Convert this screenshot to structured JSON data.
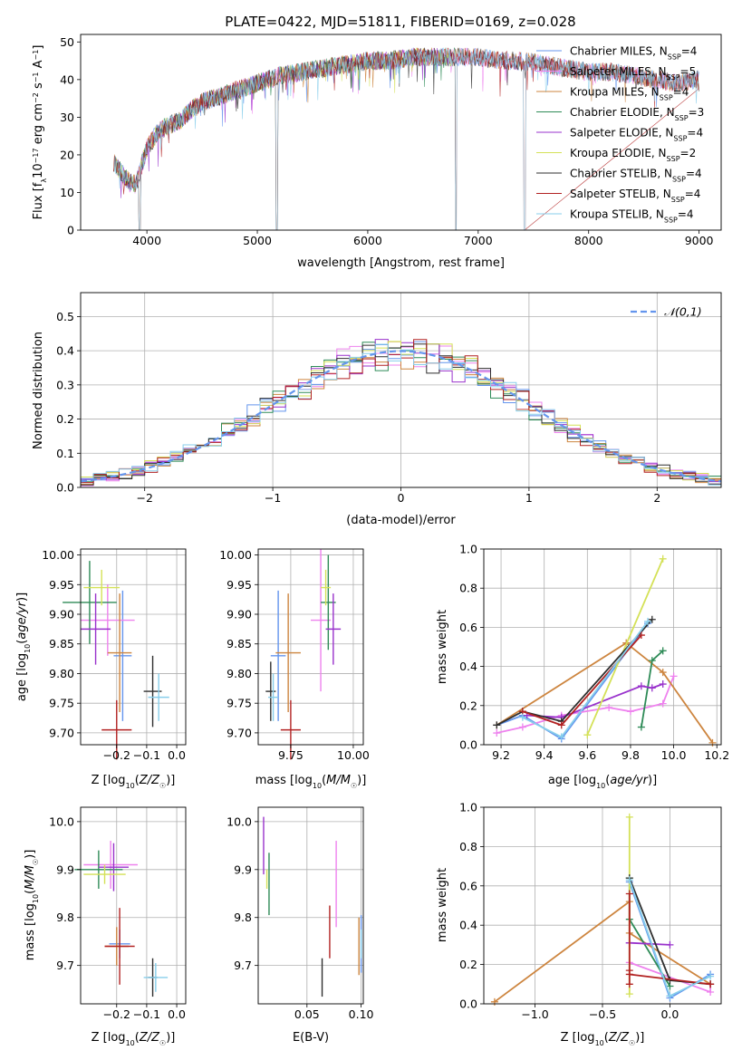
{
  "figure": {
    "title": "PLATE=0422, MJD=51811, FIBERID=0169, z=0.028"
  },
  "model_colors": {
    "Chabrier MILES": "#6495ed",
    "Salpeter MILES": "#ee82ee",
    "Kroupa MILES": "#cd853f",
    "Chabrier ELODIE": "#2e8b57",
    "Salpeter ELODIE": "#9932cc",
    "Kroupa ELODIE": "#d4e157",
    "Chabrier STELIB": "#2f2f2f",
    "Salpeter STELIB": "#b22222",
    "Kroupa STELIB": "#87ceeb"
  },
  "chart_data": [
    {
      "id": "spectrum",
      "type": "line",
      "xlabel": "wavelength [Angstrom, rest frame]",
      "ylabel": "Flux [fλ10⁻¹⁷ erg cm⁻² s⁻¹ A⁻¹]",
      "xlim": [
        3400,
        9200
      ],
      "ylim": [
        0,
        52
      ],
      "xticks": [
        4000,
        5000,
        6000,
        7000,
        8000,
        9000
      ],
      "yticks": [
        0,
        10,
        20,
        30,
        40,
        50
      ],
      "grid": false,
      "legend_position": "top-right",
      "legend": [
        "Chabrier MILES, N_SSP=4",
        "Salpeter MILES, N_SSP=5",
        "Kroupa MILES, N_SSP=4",
        "Chabrier ELODIE, N_SSP=3",
        "Salpeter ELODIE, N_SSP=4",
        "Kroupa ELODIE, N_SSP=2",
        "Chabrier STELIB, N_SSP=4",
        "Salpeter STELIB, N_SSP=4",
        "Kroupa STELIB, N_SSP=4"
      ],
      "continuum": {
        "x": [
          3700,
          3800,
          3900,
          4000,
          4100,
          4200,
          4300,
          4400,
          4500,
          4600,
          4800,
          5000,
          5200,
          5400,
          5600,
          5800,
          6000,
          6200,
          6400,
          6600,
          6800,
          7000,
          7200,
          7400,
          7600,
          7800,
          8000,
          8200,
          8400,
          8600,
          8800,
          9000
        ],
        "y": [
          18,
          14,
          12,
          22,
          26,
          28,
          29,
          32,
          34,
          35,
          37,
          39,
          41,
          42,
          43,
          44,
          45,
          45,
          46,
          46,
          46,
          46,
          45,
          45,
          44,
          43,
          42,
          42,
          41,
          40,
          39,
          40
        ]
      },
      "dips": [
        {
          "x": 3935,
          "y": 0
        },
        {
          "x": 5175,
          "y": 0
        },
        {
          "x": 6800,
          "y": 0
        },
        {
          "x": 7420,
          "y": 0
        }
      ]
    },
    {
      "id": "residual_hist",
      "type": "step",
      "xlabel": "(data-model)/error",
      "ylabel": "Normed distribution",
      "xlim": [
        -2.5,
        2.5
      ],
      "ylim": [
        0,
        0.57
      ],
      "xticks": [
        -2,
        -1,
        0,
        1,
        2
      ],
      "yticks": [
        0,
        0.1,
        0.2,
        0.3,
        0.4,
        0.5
      ],
      "grid": true,
      "legend_position": "top-right",
      "legend": [
        "𝒩(0,1)"
      ],
      "bin_width": 0.1,
      "normal_curve": {
        "mean": 0,
        "sigma": 1
      }
    },
    {
      "id": "age_vs_Z",
      "type": "errorbar",
      "xlabel": "Z [log₁₀(Z/Z☉)]",
      "ylabel": "age  [log₁₀(age/yr)]",
      "xlim": [
        -0.32,
        0.03
      ],
      "ylim": [
        9.68,
        10.01
      ],
      "xticks": [
        -0.2,
        -0.1,
        0.0
      ],
      "yticks": [
        9.7,
        9.75,
        9.8,
        9.85,
        9.9,
        9.95,
        10.0
      ],
      "grid": true,
      "points": [
        {
          "model": "Chabrier MILES",
          "x": -0.18,
          "xerr": 0.03,
          "y": 9.83,
          "yerr": 0.11
        },
        {
          "model": "Salpeter MILES",
          "x": -0.23,
          "xerr": 0.09,
          "y": 9.89,
          "yerr": 0.06
        },
        {
          "model": "Kroupa MILES",
          "x": -0.19,
          "xerr": 0.04,
          "y": 9.835,
          "yerr": 0.1
        },
        {
          "model": "Chabrier ELODIE",
          "x": -0.29,
          "xerr": 0.09,
          "y": 9.92,
          "yerr": 0.07
        },
        {
          "model": "Salpeter ELODIE",
          "x": -0.27,
          "xerr": 0.05,
          "y": 9.875,
          "yerr": 0.06
        },
        {
          "model": "Kroupa ELODIE",
          "x": -0.25,
          "xerr": 0.06,
          "y": 9.945,
          "yerr": 0.03
        },
        {
          "model": "Chabrier STELIB",
          "x": -0.08,
          "xerr": 0.03,
          "y": 9.77,
          "yerr": 0.06
        },
        {
          "model": "Salpeter STELIB",
          "x": -0.2,
          "xerr": 0.05,
          "y": 9.705,
          "yerr": 0.05
        },
        {
          "model": "Kroupa STELIB",
          "x": -0.06,
          "xerr": 0.035,
          "y": 9.76,
          "yerr": 0.04
        }
      ]
    },
    {
      "id": "age_vs_mass",
      "type": "errorbar",
      "xlabel": "mass [log₁₀(M/M☉)]",
      "xlim": [
        9.62,
        10.04
      ],
      "ylim": [
        9.68,
        10.01
      ],
      "xticks": [
        9.75,
        10.0
      ],
      "yticks": [
        9.7,
        9.75,
        9.8,
        9.85,
        9.9,
        9.95,
        10.0
      ],
      "grid": true,
      "points": [
        {
          "model": "Chabrier MILES",
          "x": 9.7,
          "xerr": 0.03,
          "y": 9.83,
          "yerr": 0.11
        },
        {
          "model": "Salpeter MILES",
          "x": 9.87,
          "xerr": 0.04,
          "y": 9.89,
          "yerr": 0.12
        },
        {
          "model": "Kroupa MILES",
          "x": 9.74,
          "xerr": 0.05,
          "y": 9.835,
          "yerr": 0.1
        },
        {
          "model": "Chabrier ELODIE",
          "x": 9.9,
          "xerr": 0.03,
          "y": 9.92,
          "yerr": 0.08
        },
        {
          "model": "Salpeter ELODIE",
          "x": 9.92,
          "xerr": 0.03,
          "y": 9.875,
          "yerr": 0.06
        },
        {
          "model": "Kroupa ELODIE",
          "x": 9.89,
          "xerr": 0.02,
          "y": 9.945,
          "yerr": 0.03
        },
        {
          "model": "Chabrier STELIB",
          "x": 9.67,
          "xerr": 0.02,
          "y": 9.77,
          "yerr": 0.05
        },
        {
          "model": "Salpeter STELIB",
          "x": 9.75,
          "xerr": 0.04,
          "y": 9.705,
          "yerr": 0.05
        },
        {
          "model": "Kroupa STELIB",
          "x": 9.68,
          "xerr": 0.02,
          "y": 9.76,
          "yerr": 0.04
        }
      ]
    },
    {
      "id": "weight_vs_age",
      "type": "line",
      "xlabel": "age  [log₁₀(age/yr)]",
      "ylabel": "mass weight",
      "xlim": [
        9.12,
        10.22
      ],
      "ylim": [
        0,
        1.0
      ],
      "xticks": [
        9.2,
        9.4,
        9.6,
        9.8,
        10.0,
        10.2
      ],
      "yticks": [
        0,
        0.2,
        0.4,
        0.6,
        0.8,
        1.0
      ],
      "grid": true,
      "series": [
        {
          "model": "Chabrier MILES",
          "x": [
            9.18,
            9.3,
            9.48,
            9.88
          ],
          "y": [
            0.1,
            0.15,
            0.03,
            0.62
          ]
        },
        {
          "model": "Salpeter MILES",
          "x": [
            9.18,
            9.3,
            9.48,
            9.7,
            9.8,
            9.95,
            10.0
          ],
          "y": [
            0.06,
            0.09,
            0.15,
            0.19,
            0.17,
            0.21,
            0.35
          ]
        },
        {
          "model": "Kroupa MILES",
          "x": [
            9.18,
            9.78,
            9.95,
            10.18
          ],
          "y": [
            0.1,
            0.52,
            0.37,
            0.01
          ]
        },
        {
          "model": "Chabrier ELODIE",
          "x": [
            9.85,
            9.9,
            9.95
          ],
          "y": [
            0.09,
            0.43,
            0.48
          ]
        },
        {
          "model": "Salpeter ELODIE",
          "x": [
            9.32,
            9.48,
            9.85,
            9.9,
            9.95
          ],
          "y": [
            0.15,
            0.14,
            0.3,
            0.29,
            0.31
          ]
        },
        {
          "model": "Kroupa ELODIE",
          "x": [
            9.6,
            9.95
          ],
          "y": [
            0.05,
            0.95
          ]
        },
        {
          "model": "Chabrier STELIB",
          "x": [
            9.18,
            9.3,
            9.48,
            9.9
          ],
          "y": [
            0.1,
            0.17,
            0.12,
            0.64
          ]
        },
        {
          "model": "Salpeter STELIB",
          "x": [
            9.3,
            9.48,
            9.85
          ],
          "y": [
            0.17,
            0.1,
            0.56
          ]
        },
        {
          "model": "Kroupa STELIB",
          "x": [
            9.3,
            9.48,
            9.88
          ],
          "y": [
            0.14,
            0.04,
            0.63
          ]
        }
      ]
    },
    {
      "id": "mass_vs_Z",
      "type": "errorbar",
      "xlabel": "Z [log₁₀(Z/Z☉)]",
      "ylabel": "mass [log₁₀(M/M☉)]",
      "xlim": [
        -0.32,
        0.03
      ],
      "ylim": [
        9.62,
        10.03
      ],
      "xticks": [
        -0.2,
        -0.1,
        0.0
      ],
      "yticks": [
        9.7,
        9.8,
        9.9,
        10.0
      ],
      "grid": true,
      "points": [
        {
          "model": "Chabrier MILES",
          "x": -0.19,
          "xerr": 0.035,
          "y": 9.745,
          "yerr": 0.03
        },
        {
          "model": "Salpeter MILES",
          "x": -0.22,
          "xerr": 0.09,
          "y": 9.91,
          "yerr": 0.05
        },
        {
          "model": "Kroupa MILES",
          "x": -0.2,
          "xerr": 0.04,
          "y": 9.74,
          "yerr": 0.04
        },
        {
          "model": "Chabrier ELODIE",
          "x": -0.26,
          "xerr": 0.08,
          "y": 9.9,
          "yerr": 0.04
        },
        {
          "model": "Salpeter ELODIE",
          "x": -0.21,
          "xerr": 0.05,
          "y": 9.905,
          "yerr": 0.05
        },
        {
          "model": "Kroupa ELODIE",
          "x": -0.24,
          "xerr": 0.07,
          "y": 9.89,
          "yerr": 0.02
        },
        {
          "model": "Chabrier STELIB",
          "x": -0.08,
          "xerr": 0.015,
          "y": 9.675,
          "yerr": 0.04
        },
        {
          "model": "Salpeter STELIB",
          "x": -0.19,
          "xerr": 0.05,
          "y": 9.74,
          "yerr": 0.08
        },
        {
          "model": "Kroupa STELIB",
          "x": -0.07,
          "xerr": 0.04,
          "y": 9.675,
          "yerr": 0.03
        }
      ]
    },
    {
      "id": "mass_vs_ebv",
      "type": "errorbar",
      "xlabel": "E(B-V)",
      "xlim": [
        0.005,
        0.102
      ],
      "ylim": [
        9.62,
        10.03
      ],
      "xticks": [
        0.05,
        0.1
      ],
      "xticklabels": [
        "0.05",
        "0.10"
      ],
      "yticks": [
        9.7,
        9.8,
        9.9,
        10.0
      ],
      "grid": true,
      "points": [
        {
          "model": "Chabrier MILES",
          "x": 0.1,
          "y": 9.745,
          "yerr": 0.06
        },
        {
          "model": "Salpeter MILES",
          "x": 0.077,
          "y": 9.87,
          "yerr": 0.09
        },
        {
          "model": "Kroupa MILES",
          "x": 0.098,
          "y": 9.74,
          "yerr": 0.06
        },
        {
          "model": "Chabrier ELODIE",
          "x": 0.015,
          "y": 9.87,
          "yerr": 0.065
        },
        {
          "model": "Salpeter ELODIE",
          "x": 0.01,
          "y": 9.95,
          "yerr": 0.06
        },
        {
          "model": "Kroupa ELODIE",
          "x": 0.013,
          "y": 9.88,
          "yerr": 0.02
        },
        {
          "model": "Chabrier STELIB",
          "x": 0.064,
          "y": 9.675,
          "yerr": 0.04
        },
        {
          "model": "Salpeter STELIB",
          "x": 0.071,
          "y": 9.77,
          "yerr": 0.055
        },
        {
          "model": "Kroupa STELIB",
          "x": 0.1,
          "y": 9.745,
          "yerr": 0.03
        }
      ]
    },
    {
      "id": "weight_vs_Z",
      "type": "line",
      "xlabel": "Z [log₁₀(Z/Z☉)]",
      "ylabel": "mass weight",
      "xlim": [
        -1.38,
        0.38
      ],
      "ylim": [
        0,
        1.0
      ],
      "xticks": [
        -1.0,
        -0.5,
        0.0
      ],
      "yticks": [
        0,
        0.2,
        0.4,
        0.6,
        0.8,
        1.0
      ],
      "grid": true,
      "series": [
        {
          "model": "Chabrier MILES",
          "x": [
            -0.3,
            0.0,
            0.3
          ],
          "y": [
            0.62,
            0.03,
            0.15
          ]
        },
        {
          "model": "Salpeter MILES",
          "x": [
            -0.3,
            0.3,
            0.3
          ],
          "y": [
            0.21,
            0.06,
            0.1
          ]
        },
        {
          "model": "Kroupa MILES",
          "x": [
            -1.3,
            -0.3,
            -0.3,
            0.3
          ],
          "y": [
            0.01,
            0.52,
            0.36,
            0.1
          ]
        },
        {
          "model": "Chabrier ELODIE",
          "x": [
            -0.3,
            -0.3,
            0.0
          ],
          "y": [
            0.64,
            0.43,
            0.09
          ]
        },
        {
          "model": "Salpeter ELODIE",
          "x": [
            -0.3,
            -0.3,
            0.0
          ],
          "y": [
            0.31,
            0.31,
            0.3
          ]
        },
        {
          "model": "Kroupa ELODIE",
          "x": [
            -0.3,
            -0.3
          ],
          "y": [
            0.95,
            0.05
          ]
        },
        {
          "model": "Chabrier STELIB",
          "x": [
            -0.3,
            0.0,
            0.3
          ],
          "y": [
            0.64,
            0.12,
            0.1
          ]
        },
        {
          "model": "Salpeter STELIB",
          "x": [
            -0.3,
            -0.3,
            -0.3,
            -0.3,
            0.3
          ],
          "y": [
            0.56,
            0.17,
            0.1,
            0.15,
            0.1
          ]
        },
        {
          "model": "Kroupa STELIB",
          "x": [
            -0.3,
            0.0,
            0.3
          ],
          "y": [
            0.63,
            0.04,
            0.14
          ]
        }
      ]
    }
  ]
}
